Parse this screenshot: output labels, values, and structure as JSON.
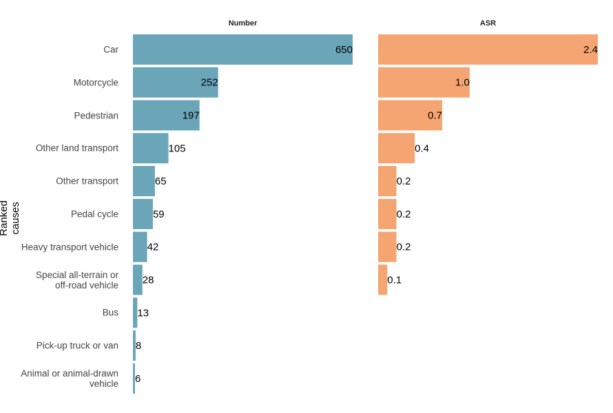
{
  "chart_data": {
    "type": "bar",
    "orientation": "horizontal",
    "y_label": "Ranked causes",
    "categories": [
      "Car",
      "Motorcycle",
      "Pedestrian",
      "Other land transport",
      "Other transport",
      "Pedal cycle",
      "Heavy transport vehicle",
      "Special all-terrain or\noff-road vehicle",
      "Bus",
      "Pick-up truck or van",
      "Animal or animal-drawn\nvehicle"
    ],
    "series": [
      {
        "name": "Number",
        "color": "#6aa5b8",
        "values": [
          650,
          252,
          197,
          105,
          65,
          59,
          42,
          28,
          13,
          8,
          6
        ]
      },
      {
        "name": "ASR",
        "color": "#f5a572",
        "values": [
          2.4,
          1.0,
          0.7,
          0.4,
          0.2,
          0.2,
          0.2,
          0.1,
          null,
          null,
          null
        ],
        "value_labels": [
          "2.4",
          "1.0",
          "0.7",
          "0.4",
          "0.2",
          "0.2",
          "0.2",
          "0.1",
          null,
          null,
          null
        ]
      }
    ]
  }
}
